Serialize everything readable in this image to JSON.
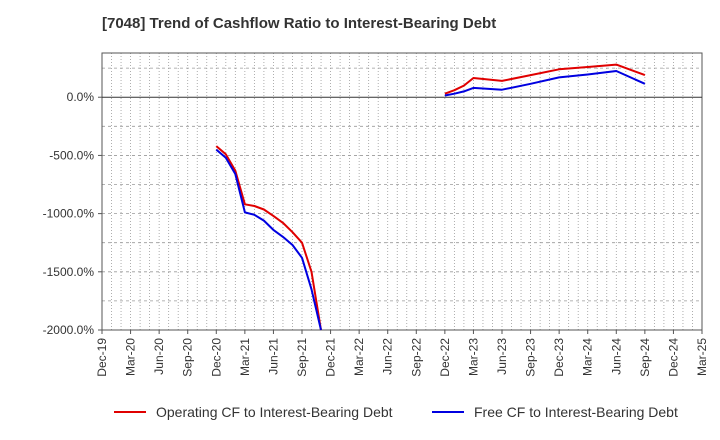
{
  "chart_data": {
    "type": "line",
    "title": "[7048]  Trend of Cashflow Ratio to Interest-Bearing Debt",
    "xlabel": "",
    "ylabel": "",
    "x_ticks": [
      "Dec-19",
      "Mar-20",
      "Jun-20",
      "Sep-20",
      "Dec-20",
      "Mar-21",
      "Jun-21",
      "Sep-21",
      "Dec-21",
      "Mar-22",
      "Jun-22",
      "Sep-22",
      "Dec-22",
      "Mar-23",
      "Jun-23",
      "Sep-23",
      "Dec-23",
      "Mar-24",
      "Jun-24",
      "Sep-24",
      "Dec-24",
      "Mar-25"
    ],
    "y_ticks": [
      "0.0%",
      "-500.0%",
      "-1000.0%",
      "-1500.0%",
      "-2000.0%"
    ],
    "y_tick_values": [
      0,
      -500,
      -1000,
      -1500,
      -2000
    ],
    "ylim": [
      -2000,
      380
    ],
    "grid": true,
    "legend_position": "bottom",
    "series": [
      {
        "name": "Operating CF to Interest-Bearing Debt",
        "color": "#e00000",
        "segments": [
          [
            {
              "x": "Dec-20",
              "y": -420
            },
            {
              "x": "Jan-21",
              "y": -490
            },
            {
              "x": "Feb-21",
              "y": -630
            },
            {
              "x": "Mar-21",
              "y": -920
            },
            {
              "x": "Apr-21",
              "y": -935
            },
            {
              "x": "May-21",
              "y": -965
            },
            {
              "x": "Jun-21",
              "y": -1020
            },
            {
              "x": "Jul-21",
              "y": -1080
            },
            {
              "x": "Aug-21",
              "y": -1160
            },
            {
              "x": "Sep-21",
              "y": -1250
            },
            {
              "x": "Oct-21",
              "y": -1500
            },
            {
              "x": "Nov-21",
              "y": -2000
            }
          ],
          [
            {
              "x": "Dec-22",
              "y": 30
            },
            {
              "x": "Jan-23",
              "y": 60
            },
            {
              "x": "Feb-23",
              "y": 100
            },
            {
              "x": "Mar-23",
              "y": 165
            },
            {
              "x": "Jun-23",
              "y": 140
            },
            {
              "x": "Sep-23",
              "y": 190
            },
            {
              "x": "Dec-23",
              "y": 240
            },
            {
              "x": "Mar-24",
              "y": 260
            },
            {
              "x": "Jun-24",
              "y": 280
            },
            {
              "x": "Sep-24",
              "y": 190
            }
          ]
        ]
      },
      {
        "name": "Free CF to Interest-Bearing Debt",
        "color": "#0000e0",
        "segments": [
          [
            {
              "x": "Dec-20",
              "y": -450
            },
            {
              "x": "Jan-21",
              "y": -520
            },
            {
              "x": "Feb-21",
              "y": -660
            },
            {
              "x": "Mar-21",
              "y": -990
            },
            {
              "x": "Apr-21",
              "y": -1010
            },
            {
              "x": "May-21",
              "y": -1060
            },
            {
              "x": "Jun-21",
              "y": -1140
            },
            {
              "x": "Jul-21",
              "y": -1200
            },
            {
              "x": "Aug-21",
              "y": -1270
            },
            {
              "x": "Sep-21",
              "y": -1380
            },
            {
              "x": "Oct-21",
              "y": -1650
            },
            {
              "x": "Nov-21",
              "y": -2000
            }
          ],
          [
            {
              "x": "Dec-22",
              "y": 15
            },
            {
              "x": "Jan-23",
              "y": 30
            },
            {
              "x": "Feb-23",
              "y": 50
            },
            {
              "x": "Mar-23",
              "y": 80
            },
            {
              "x": "Jun-23",
              "y": 65
            },
            {
              "x": "Sep-23",
              "y": 115
            },
            {
              "x": "Dec-23",
              "y": 170
            },
            {
              "x": "Mar-24",
              "y": 195
            },
            {
              "x": "Jun-24",
              "y": 225
            },
            {
              "x": "Sep-24",
              "y": 115
            }
          ]
        ]
      }
    ]
  }
}
